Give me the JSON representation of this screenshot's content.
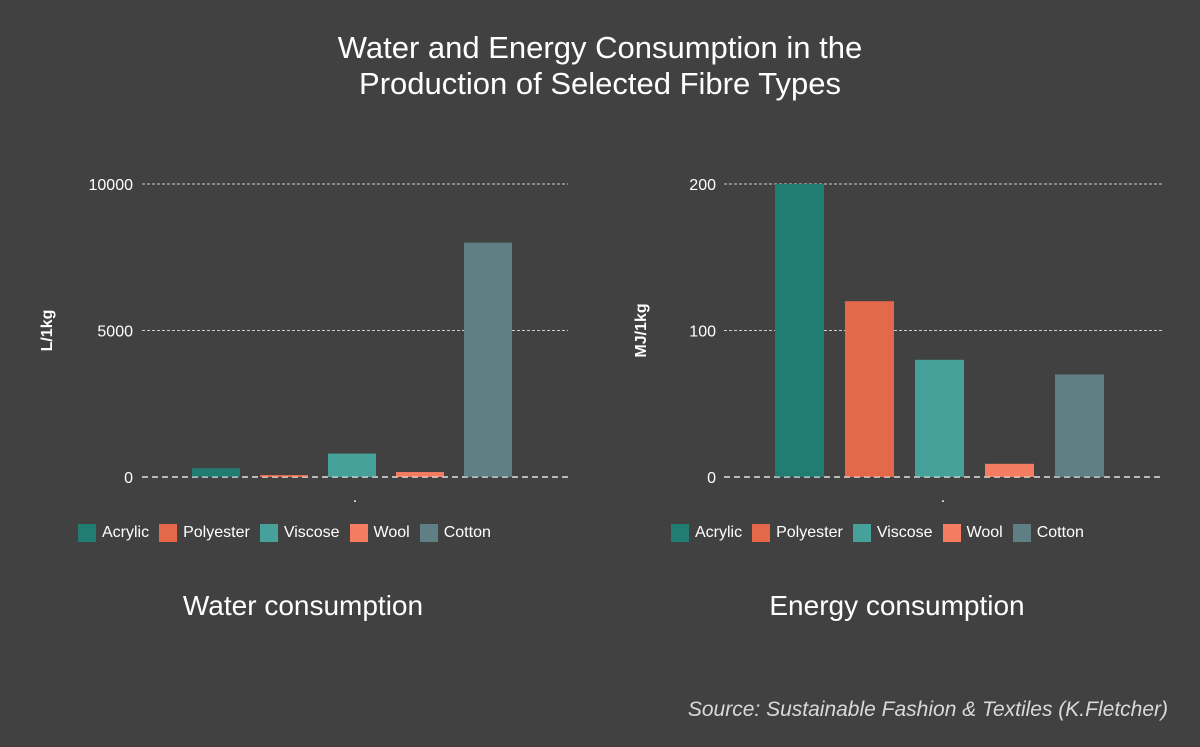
{
  "title_lines": [
    "Water and Energy Consumption in the",
    "Production of Selected Fibre Types"
  ],
  "source": "Source: Sustainable Fashion & Textiles (K.Fletcher)",
  "colors": {
    "background": "#414141",
    "Acrylic": "#217D72",
    "Polyester": "#E4694B",
    "Viscose": "#45A199",
    "Wool": "#F47C60",
    "Cotton": "#607F84",
    "gridline": "#e6e6e6"
  },
  "chart_data": [
    {
      "type": "bar",
      "title": "Water consumption",
      "xlabel": ".",
      "ylabel": "L/1kg",
      "categories": [
        "Acrylic",
        "Polyester",
        "Viscose",
        "Wool",
        "Cotton"
      ],
      "values": [
        300,
        50,
        800,
        170,
        8000
      ],
      "ylim": [
        0,
        10000
      ],
      "yticks": [
        0,
        5000,
        10000
      ],
      "ytick_labels": [
        "0",
        "5000",
        "10000"
      ],
      "grid": true,
      "legend": [
        "Acrylic",
        "Polyester",
        "Viscose",
        "Wool",
        "Cotton"
      ],
      "legend_position": "bottom"
    },
    {
      "type": "bar",
      "title": "Energy consumption",
      "xlabel": ".",
      "ylabel": "MJ/1kg",
      "categories": [
        "Acrylic",
        "Polyester",
        "Viscose",
        "Wool",
        "Cotton"
      ],
      "values": [
        200,
        120,
        80,
        9,
        70
      ],
      "ylim": [
        0,
        200
      ],
      "yticks": [
        0,
        100,
        200
      ],
      "ytick_labels": [
        "0",
        "100",
        "200"
      ],
      "grid": true,
      "legend": [
        "Acrylic",
        "Polyester",
        "Viscose",
        "Wool",
        "Cotton"
      ],
      "legend_position": "bottom"
    }
  ]
}
